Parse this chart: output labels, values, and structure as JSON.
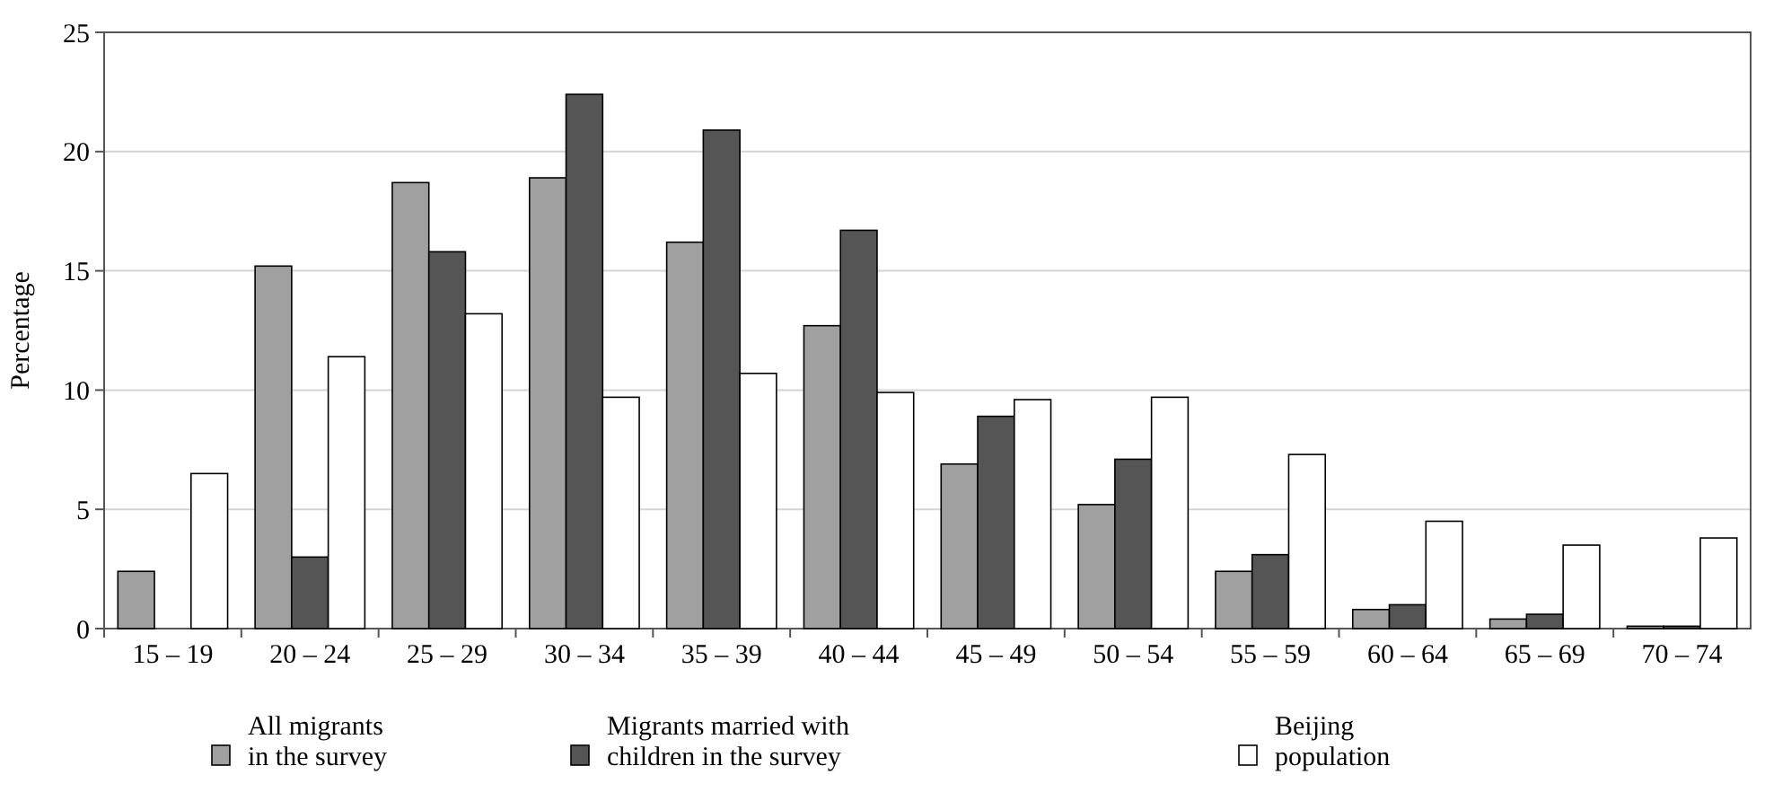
{
  "chart_data": {
    "type": "bar",
    "ylabel": "Percentage",
    "categories": [
      "15 – 19",
      "20 – 24",
      "25 – 29",
      "30 – 34",
      "35 – 39",
      "40 – 44",
      "45 – 49",
      "50 – 54",
      "55 – 59",
      "60 – 64",
      "65 – 69",
      "70 – 74"
    ],
    "series": [
      {
        "name": "All migrants in the survey",
        "color": "#a0a0a0",
        "values": [
          2.4,
          15.2,
          18.7,
          18.9,
          16.2,
          12.7,
          6.9,
          5.2,
          2.4,
          0.8,
          0.4,
          0.1
        ]
      },
      {
        "name": "Migrants married with children in the survey",
        "color": "#555555",
        "values": [
          0,
          3.0,
          15.8,
          22.4,
          20.9,
          16.7,
          8.9,
          7.1,
          3.1,
          1.0,
          0.6,
          0.1
        ]
      },
      {
        "name": "Beijing population",
        "color": "#ffffff",
        "values": [
          6.5,
          11.4,
          13.2,
          9.7,
          10.7,
          9.9,
          9.6,
          9.7,
          7.3,
          4.5,
          3.5,
          3.8
        ]
      }
    ],
    "ylim": [
      0,
      25
    ],
    "yticks": [
      0,
      5,
      10,
      15,
      20,
      25
    ],
    "grid": "y",
    "legend": "bottom"
  }
}
